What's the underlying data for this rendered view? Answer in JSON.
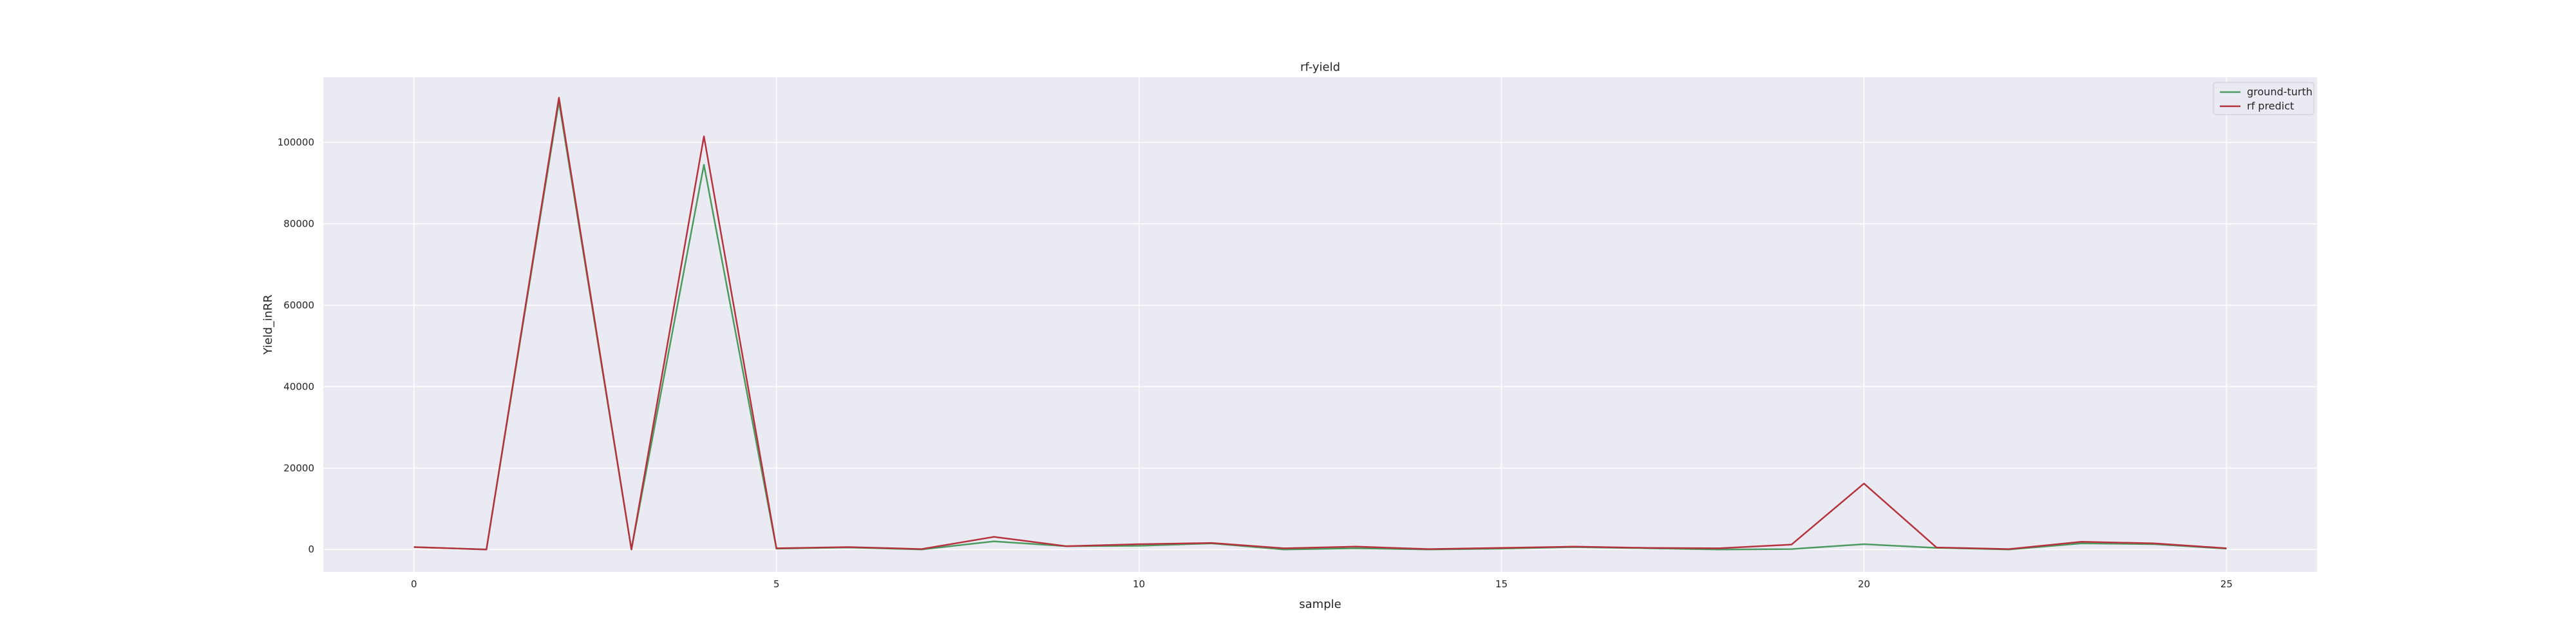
{
  "chart_data": {
    "type": "line",
    "title": "rf-yield",
    "xlabel": "sample",
    "ylabel": "Yield_inRR",
    "xlim": [
      -1.25,
      26.25
    ],
    "ylim": [
      -5500,
      116000
    ],
    "xticks": [
      0,
      5,
      10,
      15,
      20,
      25
    ],
    "yticks": [
      0,
      20000,
      40000,
      60000,
      80000,
      100000
    ],
    "grid": true,
    "legend_position": "top-right",
    "x": [
      0,
      1,
      2,
      3,
      4,
      5,
      6,
      7,
      8,
      9,
      10,
      11,
      12,
      13,
      14,
      15,
      16,
      17,
      18,
      19,
      20,
      21,
      22,
      23,
      24,
      25
    ],
    "series": [
      {
        "name": "ground-turth",
        "color": "#4c9a5f",
        "values": [
          600,
          0,
          110000,
          0,
          94500,
          200,
          500,
          0,
          2000,
          800,
          900,
          1500,
          0,
          300,
          0,
          200,
          600,
          300,
          0,
          100,
          1300,
          400,
          0,
          1500,
          1300,
          200
        ]
      },
      {
        "name": "rf predict",
        "color": "#b5333e",
        "values": [
          600,
          0,
          111000,
          0,
          101500,
          300,
          600,
          100,
          3100,
          800,
          1300,
          1600,
          300,
          700,
          100,
          400,
          700,
          400,
          300,
          1200,
          16200,
          500,
          100,
          1900,
          1500,
          300
        ]
      }
    ]
  }
}
